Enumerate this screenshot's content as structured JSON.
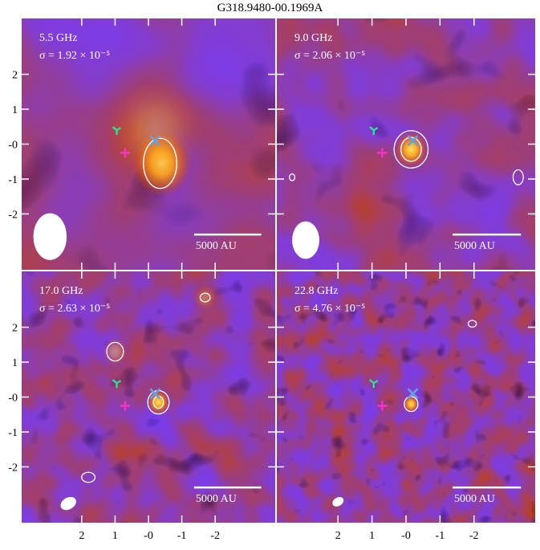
{
  "title": "G318.9480-00.1969A",
  "colors": {
    "background_low": "#1a0a3c",
    "background_mid": "#7a3cf0",
    "background_high": "#c0400c",
    "peak": "#ffe066",
    "contour": "#ffffff",
    "beam": "#ffffff",
    "scalebar": "#ffffff",
    "marker_plus": "#ff33cc",
    "marker_cross": "#6aa0d8",
    "marker_tri": "#33dd99"
  },
  "chart_data": [
    {
      "type": "heatmap",
      "panel": "5.5 GHz",
      "label": "5.5 GHz",
      "sigma": "σ = 1.92 × 10⁻⁵",
      "scalebar": "5000 AU",
      "xlim": [
        3.8,
        -3.8
      ],
      "ylim": [
        -3.6,
        3.6
      ],
      "xticks": [],
      "yticks": [
        "2",
        "1",
        "-0",
        "-1",
        "-2"
      ],
      "beam": {
        "x": 2.95,
        "y": -2.65,
        "major": 1.4,
        "minor": 1.0,
        "angle": 0
      },
      "markers": {
        "plus": [
          0.7,
          -0.25
        ],
        "cross": [
          -0.2,
          0.1
        ],
        "tri": [
          0.95,
          0.4
        ]
      },
      "sources": [
        {
          "x": -0.4,
          "y": -0.55,
          "amp": 1.0,
          "size": 0.9
        },
        {
          "x": -0.2,
          "y": 0.4,
          "amp": 0.35,
          "size": 1.5
        }
      ],
      "contours": [
        {
          "cx": -0.35,
          "cy": -0.55,
          "rx": 0.5,
          "ry": 0.75
        }
      ]
    },
    {
      "type": "heatmap",
      "panel": "9.0 GHz",
      "label": "9.0 GHz",
      "sigma": "σ = 2.06 × 10⁻⁵",
      "scalebar": "5000 AU",
      "xlim": [
        3.8,
        -3.8
      ],
      "ylim": [
        -3.6,
        3.6
      ],
      "xticks": [],
      "yticks": [],
      "beam": {
        "x": 2.95,
        "y": -2.75,
        "major": 1.1,
        "minor": 0.8,
        "angle": 0
      },
      "markers": {
        "plus": [
          0.7,
          -0.25
        ],
        "cross": [
          -0.2,
          0.1
        ],
        "tri": [
          0.95,
          0.4
        ]
      },
      "sources": [
        {
          "x": -0.15,
          "y": -0.15,
          "amp": 1.0,
          "size": 0.5
        }
      ],
      "contours": [
        {
          "cx": -0.15,
          "cy": -0.15,
          "rx": 0.5,
          "ry": 0.55
        },
        {
          "cx": -0.15,
          "cy": -0.15,
          "rx": 0.3,
          "ry": 0.35
        },
        {
          "cx": 3.35,
          "cy": -0.95,
          "rx": 0.08,
          "ry": 0.1
        },
        {
          "cx": -3.3,
          "cy": -0.95,
          "rx": 0.15,
          "ry": 0.22
        }
      ]
    },
    {
      "type": "heatmap",
      "panel": "17.0 GHz",
      "label": "17.0 GHz",
      "sigma": "σ = 2.63 × 10⁻⁵",
      "scalebar": "5000 AU",
      "xlim": [
        3.8,
        -3.8
      ],
      "ylim": [
        -3.6,
        3.6
      ],
      "xticks": [
        "2",
        "1",
        "-0",
        "-1",
        "-2"
      ],
      "yticks": [
        "2",
        "1",
        "-0",
        "-1",
        "-2"
      ],
      "beam": {
        "x": 2.4,
        "y": -3.05,
        "major": 0.5,
        "minor": 0.35,
        "angle": 60
      },
      "markers": {
        "plus": [
          0.7,
          -0.25
        ],
        "cross": [
          -0.2,
          0.1
        ],
        "tri": [
          0.95,
          0.4
        ]
      },
      "sources": [
        {
          "x": -0.3,
          "y": -0.15,
          "amp": 1.0,
          "size": 0.35
        },
        {
          "x": 1.0,
          "y": 1.3,
          "amp": 0.45,
          "size": 0.4
        },
        {
          "x": -1.7,
          "y": 2.85,
          "amp": 0.35,
          "size": 0.35
        }
      ],
      "contours": [
        {
          "cx": -0.3,
          "cy": -0.15,
          "rx": 0.32,
          "ry": 0.35
        },
        {
          "cx": -0.3,
          "cy": -0.15,
          "rx": 0.15,
          "ry": 0.18
        },
        {
          "cx": 1.0,
          "cy": 1.3,
          "rx": 0.25,
          "ry": 0.28
        },
        {
          "cx": -1.7,
          "cy": 2.85,
          "rx": 0.15,
          "ry": 0.13
        },
        {
          "cx": 1.8,
          "cy": -2.3,
          "rx": 0.2,
          "ry": 0.15
        }
      ]
    },
    {
      "type": "heatmap",
      "panel": "22.8 GHz",
      "label": "22.8 GHz",
      "sigma": "σ = 4.76 × 10⁻⁵",
      "scalebar": "5000 AU",
      "xlim": [
        3.8,
        -3.8
      ],
      "ylim": [
        -3.6,
        3.6
      ],
      "xticks": [
        "2",
        "1",
        "-0",
        "-1",
        "-2"
      ],
      "yticks": [],
      "beam": {
        "x": 2.0,
        "y": -3.0,
        "major": 0.35,
        "minor": 0.25,
        "angle": 60
      },
      "markers": {
        "plus": [
          0.7,
          -0.25
        ],
        "cross": [
          -0.2,
          0.1
        ],
        "tri": [
          0.95,
          0.4
        ]
      },
      "sources": [
        {
          "x": -0.15,
          "y": -0.2,
          "amp": 1.0,
          "size": 0.25
        }
      ],
      "contours": [
        {
          "cx": -0.15,
          "cy": -0.2,
          "rx": 0.2,
          "ry": 0.22
        },
        {
          "cx": -1.95,
          "cy": 2.1,
          "rx": 0.12,
          "ry": 0.1
        }
      ]
    }
  ]
}
